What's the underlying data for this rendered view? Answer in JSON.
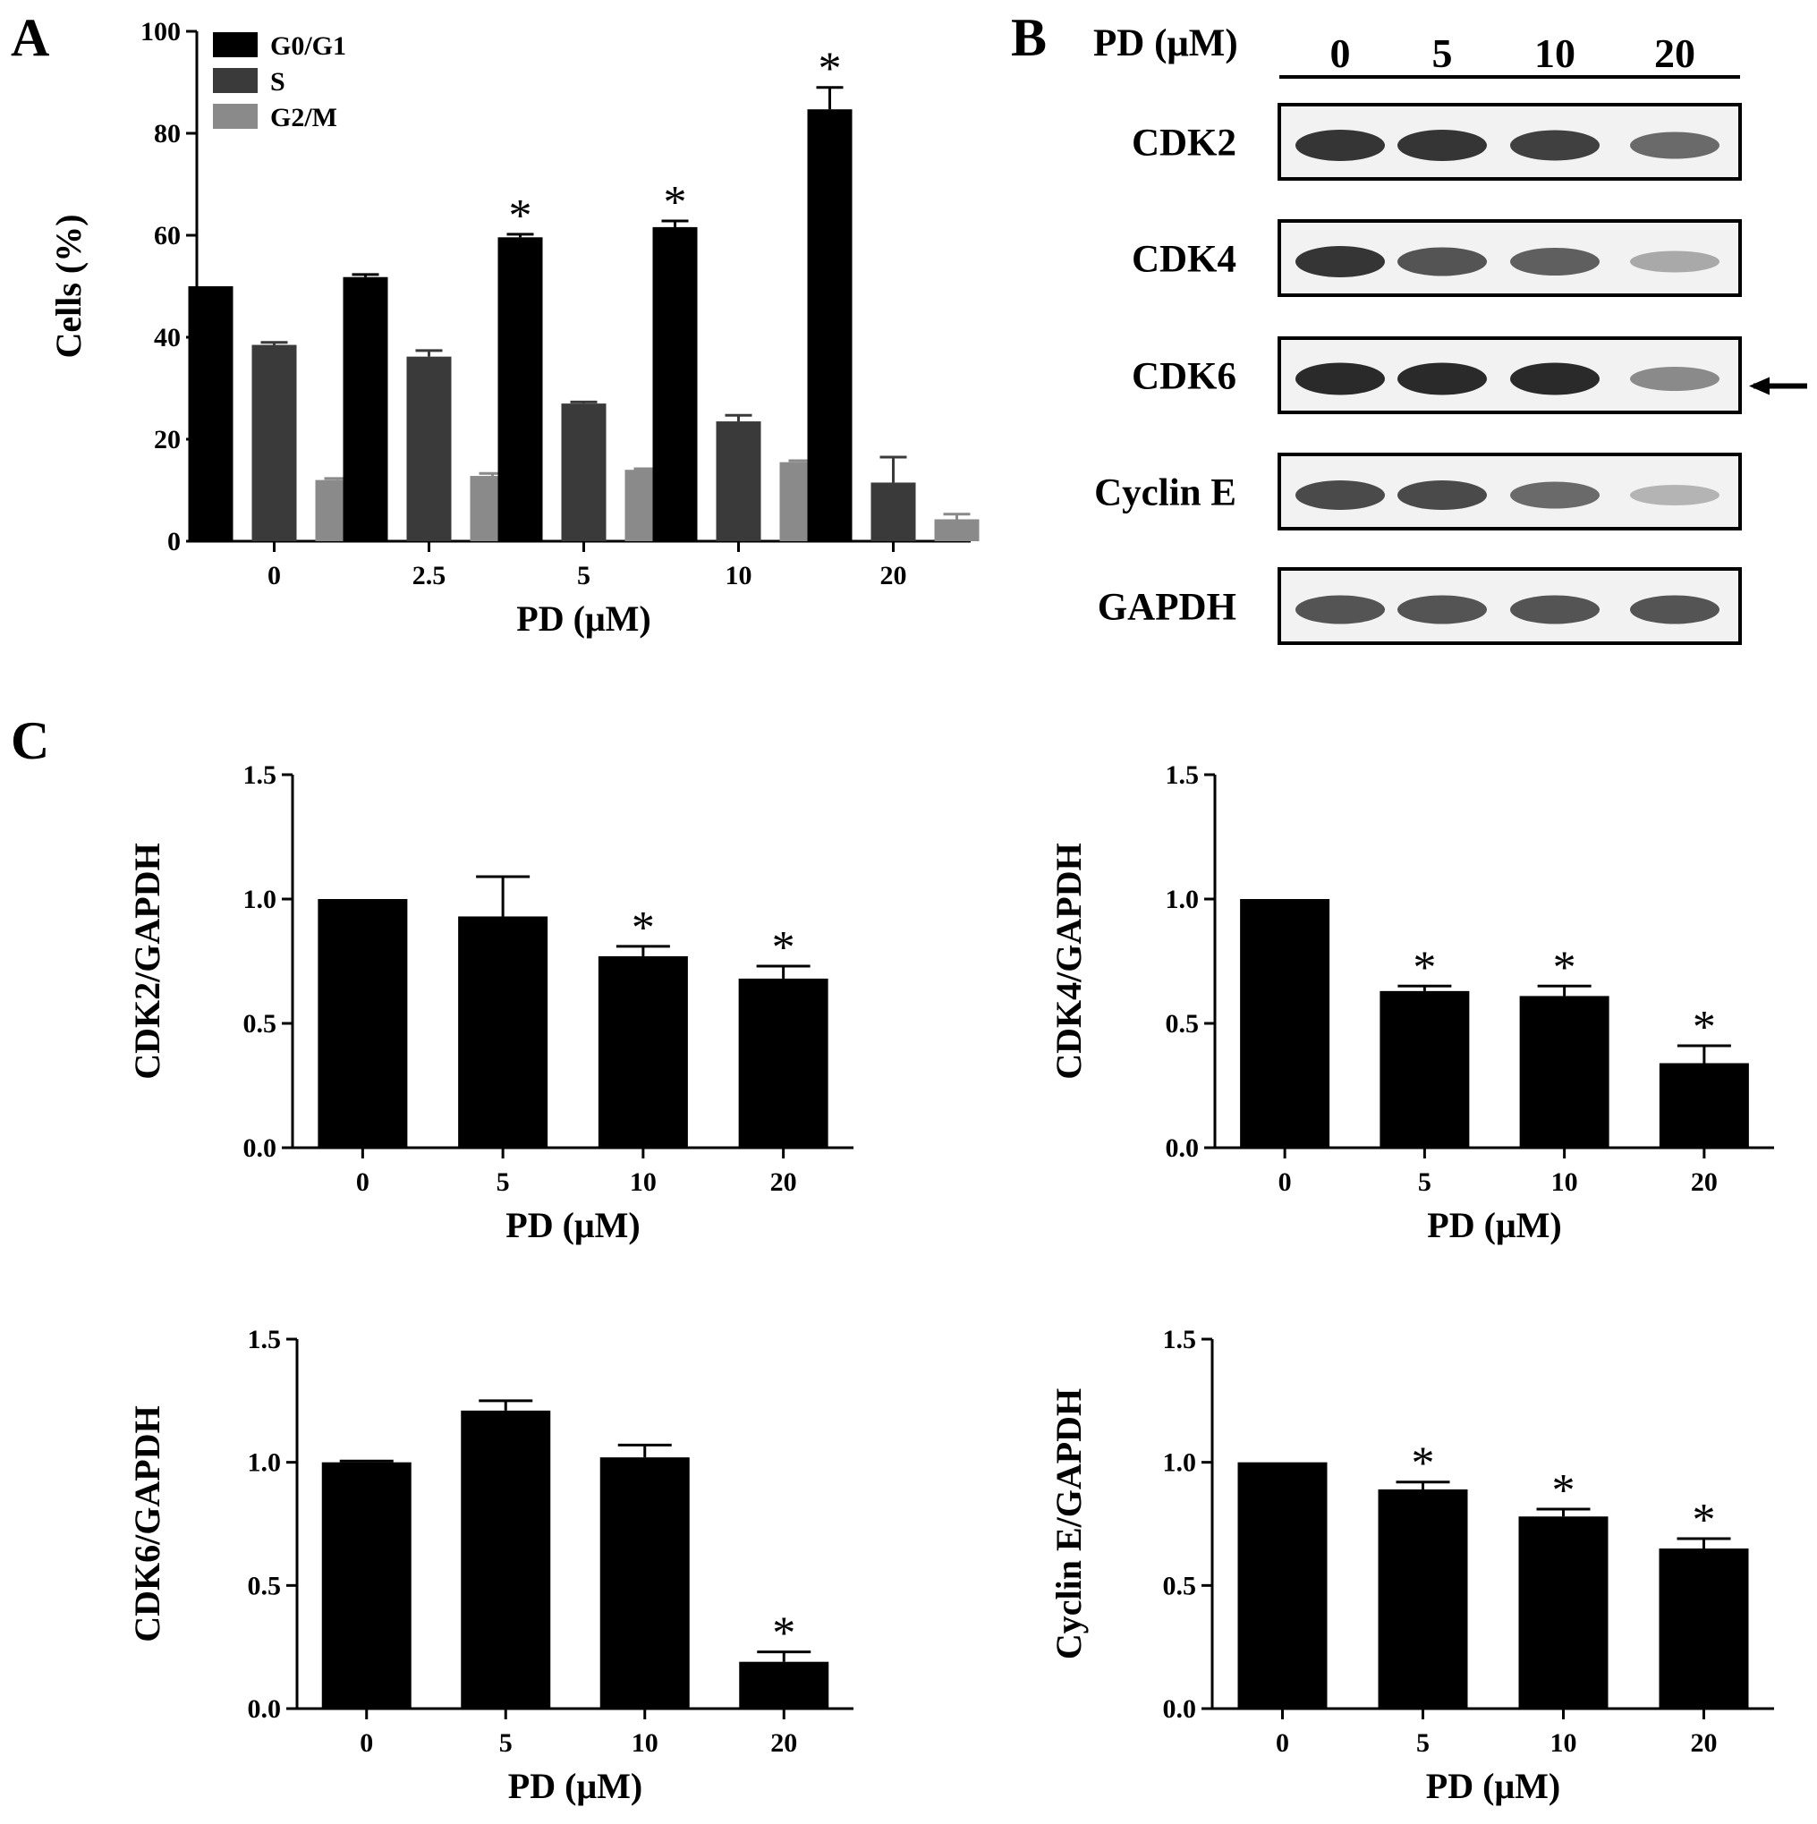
{
  "panels": {
    "a": "A",
    "b": "B",
    "c": "C"
  },
  "colors": {
    "g0g1": "#000000",
    "s": "#3a3a3a",
    "g2m": "#8a8a8a",
    "bar": "#000000"
  },
  "chart_data": [
    {
      "id": "A",
      "type": "bar",
      "xlabel": "PD (μM)",
      "ylabel": "Cells (%)",
      "categories": [
        "0",
        "2.5",
        "5",
        "10",
        "20"
      ],
      "ylim": [
        0,
        100
      ],
      "yticks": [
        "0",
        "20",
        "40",
        "60",
        "80",
        "100"
      ],
      "legend_position": "top-left",
      "series": [
        {
          "name": "G0/G1",
          "color_key": "g0g1",
          "values": [
            50,
            51.8,
            59.6,
            61.6,
            84.7
          ],
          "errors": [
            0,
            0.5,
            0.6,
            1.2,
            4.3
          ],
          "significant": [
            false,
            false,
            true,
            true,
            true
          ]
        },
        {
          "name": "S",
          "color_key": "s",
          "values": [
            38.5,
            36.2,
            27.0,
            23.5,
            11.5
          ],
          "errors": [
            0.5,
            1.2,
            0.3,
            1.2,
            5.0
          ],
          "significant": [
            false,
            false,
            false,
            false,
            false
          ]
        },
        {
          "name": "G2/M",
          "color_key": "g2m",
          "values": [
            12.0,
            12.8,
            14.0,
            15.5,
            4.3
          ],
          "errors": [
            0.3,
            0.5,
            0.2,
            0.3,
            1.0
          ],
          "significant": [
            false,
            false,
            false,
            false,
            false
          ]
        }
      ],
      "significance_marker": "*"
    },
    {
      "id": "C1",
      "type": "bar",
      "xlabel": "PD (μM)",
      "ylabel": "CDK2/GAPDH",
      "categories": [
        "0",
        "5",
        "10",
        "20"
      ],
      "ylim": [
        0,
        1.5
      ],
      "yticks": [
        "0.0",
        "0.5",
        "1.0",
        "1.5"
      ],
      "values": [
        1.0,
        0.93,
        0.77,
        0.68
      ],
      "errors": [
        0,
        0.16,
        0.04,
        0.05
      ],
      "significant": [
        false,
        false,
        true,
        true
      ],
      "significance_marker": "*"
    },
    {
      "id": "C2",
      "type": "bar",
      "xlabel": "PD (μM)",
      "ylabel": "CDK4/GAPDH",
      "categories": [
        "0",
        "5",
        "10",
        "20"
      ],
      "ylim": [
        0,
        1.5
      ],
      "yticks": [
        "0.0",
        "0.5",
        "1.0",
        "1.5"
      ],
      "values": [
        1.0,
        0.63,
        0.61,
        0.34
      ],
      "errors": [
        0,
        0.02,
        0.04,
        0.07
      ],
      "significant": [
        false,
        true,
        true,
        true
      ],
      "significance_marker": "*"
    },
    {
      "id": "C3",
      "type": "bar",
      "xlabel": "PD (μM)",
      "ylabel": "CDK6/GAPDH",
      "categories": [
        "0",
        "5",
        "10",
        "20"
      ],
      "ylim": [
        0,
        1.5
      ],
      "yticks": [
        "0.0",
        "0.5",
        "1.0",
        "1.5"
      ],
      "values": [
        1.0,
        1.21,
        1.02,
        0.19
      ],
      "errors": [
        0.005,
        0.04,
        0.05,
        0.04
      ],
      "significant": [
        false,
        false,
        false,
        true
      ],
      "significance_marker": "*"
    },
    {
      "id": "C4",
      "type": "bar",
      "xlabel": "PD (μM)",
      "ylabel": "Cyclin E/GAPDH",
      "categories": [
        "0",
        "5",
        "10",
        "20"
      ],
      "ylim": [
        0,
        1.5
      ],
      "yticks": [
        "0.0",
        "0.5",
        "1.0",
        "1.5"
      ],
      "values": [
        1.0,
        0.89,
        0.78,
        0.65
      ],
      "errors": [
        0,
        0.03,
        0.03,
        0.04
      ],
      "significant": [
        false,
        true,
        true,
        true
      ],
      "significance_marker": "*"
    }
  ],
  "western_blot": {
    "header_label": "PD (μM)",
    "lanes": [
      "0",
      "5",
      "10",
      "20"
    ],
    "rows": [
      {
        "label": "CDK2",
        "intensity": [
          0.95,
          0.95,
          0.9,
          0.7
        ]
      },
      {
        "label": "CDK4",
        "intensity": [
          0.95,
          0.8,
          0.75,
          0.4
        ]
      },
      {
        "label": "CDK6",
        "intensity": [
          1.0,
          1.0,
          1.0,
          0.55
        ]
      },
      {
        "label": "Cyclin E",
        "intensity": [
          0.85,
          0.85,
          0.7,
          0.35
        ]
      },
      {
        "label": "GAPDH",
        "intensity": [
          0.8,
          0.8,
          0.8,
          0.8
        ]
      }
    ],
    "arrow_row": "CDK6"
  }
}
